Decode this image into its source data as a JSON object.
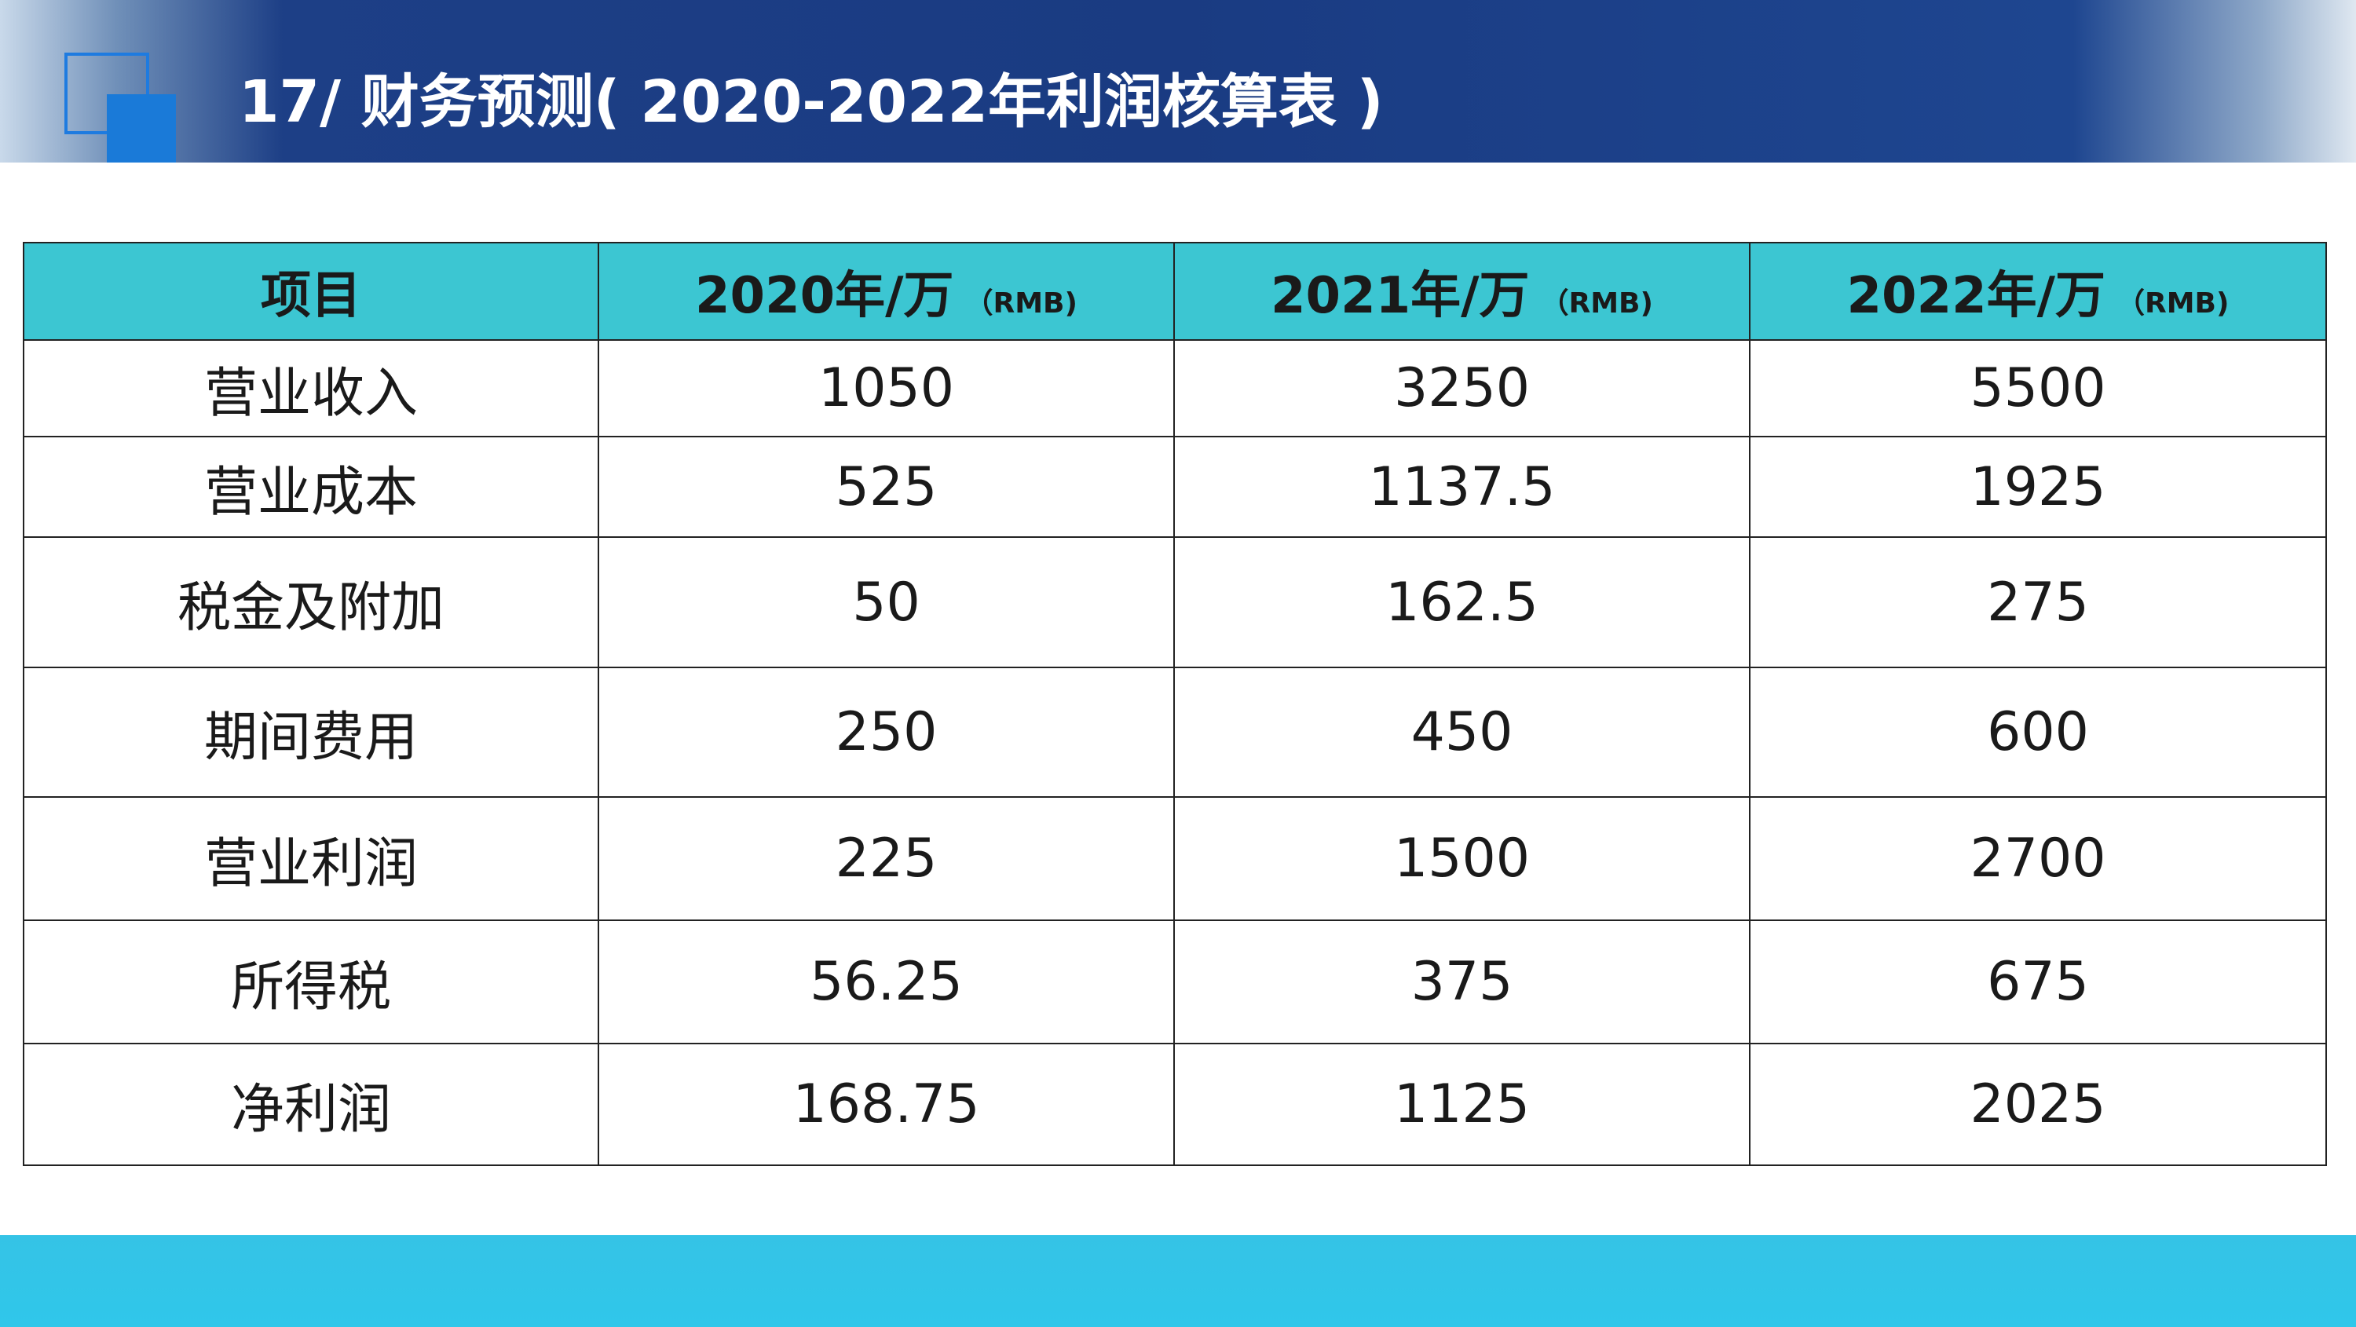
{
  "header": {
    "title": "17/ 财务预测( 2020-2022年利润核算表 )"
  },
  "table": {
    "columns": [
      {
        "main": "项目"
      },
      {
        "main": "2020年/万",
        "unit": "（RMB)"
      },
      {
        "main": "2021年/万",
        "unit": "（RMB)"
      },
      {
        "main": "2022年/万",
        "unit": "（RMB)"
      }
    ],
    "rows": [
      [
        "营业收入",
        1050,
        3250,
        5500
      ],
      [
        "营业成本",
        525,
        1137.5,
        1925
      ],
      [
        "税金及附加",
        50,
        162.5,
        275
      ],
      [
        "期间费用",
        250,
        450,
        600
      ],
      [
        "营业利润",
        225,
        1500,
        2700
      ],
      [
        "所得税",
        56.25,
        375,
        675
      ],
      [
        "净利润",
        168.75,
        1125,
        2025
      ]
    ]
  }
}
